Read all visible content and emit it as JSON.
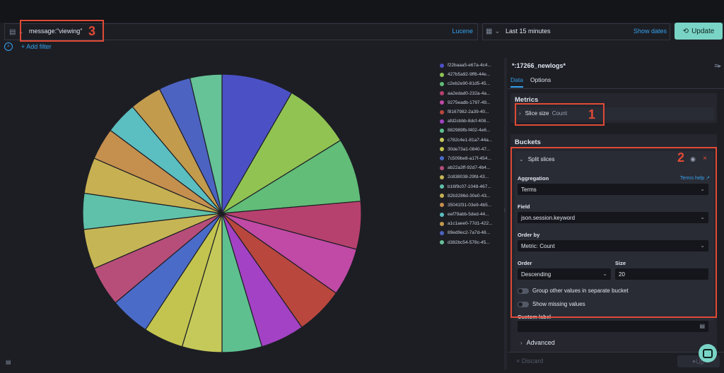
{
  "query": {
    "text": "message:\"viewing\"",
    "language": "Lucene"
  },
  "time": {
    "range": "Last 15 minutes",
    "show_dates": "Show dates"
  },
  "update_button": "Update",
  "add_filter": "+ Add filter",
  "annotations": [
    "1",
    "2",
    "3"
  ],
  "panel": {
    "index_pattern": "*:17266_newlogs*",
    "tabs": [
      "Data",
      "Options"
    ],
    "metrics_title": "Metrics",
    "slice_size_label": "Slice size",
    "slice_size_value": "Count",
    "buckets_title": "Buckets",
    "split_slices": "Split slices",
    "aggregation_label": "Aggregation",
    "terms_help": "Terms help",
    "aggregation_value": "Terms",
    "field_label": "Field",
    "field_value": "json.session.keyword",
    "order_by_label": "Order by",
    "order_by_value": "Metric: Count",
    "order_label": "Order",
    "order_value": "Descending",
    "size_label": "Size",
    "size_value": "20",
    "group_other": "Group other values in separate bucket",
    "show_missing": "Show missing values",
    "custom_label": "Custom label",
    "advanced": "Advanced",
    "discard": "Discard",
    "update_small": "Up"
  },
  "chart_data": {
    "type": "pie",
    "labels": [
      "f22baaa5-e67a-4c4...",
      "427b5a92-9ff6-44e...",
      "c2eb2e90-81d5-45...",
      "aa2edad0-232a-4a...",
      "9275eadb-1797-49...",
      "f8167982-2a39-40...",
      "afd2cbbb-8dcf-408...",
      "882989fb-f402-4e6...",
      "c782c4e1-81a7-44a...",
      "30de73a1-0840-47...",
      "7c509be8-a17f-454...",
      "ab22a3ff-92d7-4b4...",
      "2c838038-29fd-43...",
      "b16f9c07-1048-467...",
      "82b3286d-30e0-43...",
      "35041f31-03e9-4b5...",
      "eef79abb-5ded-44...",
      "a1c1aee0-77d1-422...",
      "89ed9ec2-7a7d-48...",
      "d382bc54-578c-45..."
    ],
    "values": [
      9,
      8.5,
      8,
      6,
      6,
      6,
      5.5,
      5,
      5,
      5,
      5,
      5,
      5,
      4.5,
      4.5,
      4,
      4,
      4,
      4,
      4
    ],
    "colors": [
      "#4b51c4",
      "#91c353",
      "#61bd78",
      "#b7416e",
      "#c04aa6",
      "#b9473e",
      "#a342c4",
      "#5ec08f",
      "#c5c95a",
      "#c2c44f",
      "#4b6bc8",
      "#b74e7a",
      "#c6b555",
      "#5fc1aa",
      "#c6b052",
      "#c58f4e",
      "#5bbec0",
      "#c39b4d",
      "#4c63c2",
      "#66c297"
    ]
  }
}
